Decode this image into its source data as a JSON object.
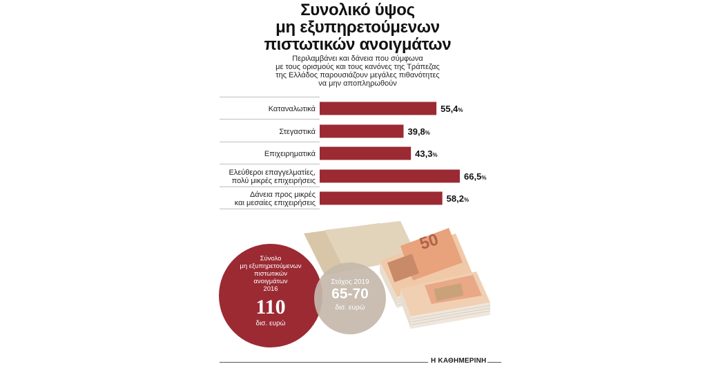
{
  "header": {
    "title_lines": [
      "Συνολικό ύψος",
      "μη εξυπηρετούμενων",
      "πιστωτικών ανοιγμάτων"
    ],
    "subtitle_lines": [
      "Περιλαμβάνει και δάνεια που σύμφωνα",
      "με τους ορισμούς και τους κανόνες της Τράπεζας",
      "της Ελλάδος παρουσιάζουν μεγάλες πιθανότητες",
      "να μην αποπληρωθούν"
    ]
  },
  "chart_data": {
    "type": "bar",
    "orientation": "horizontal",
    "categories": [
      [
        "Καταναλωτικά"
      ],
      [
        "Στεγαστικά"
      ],
      [
        "Επιχειρηματικά"
      ],
      [
        "Ελεύθεροι επαγγελματίες,",
        "πολύ μικρές επιχειρήσεις"
      ],
      [
        "Δάνεια προς μικρές",
        "και μεσαίες επιχειρήσεις"
      ]
    ],
    "values": [
      55.4,
      39.8,
      43.3,
      66.5,
      58.2
    ],
    "value_labels": [
      "55,4",
      "39,8",
      "43,3",
      "66,5",
      "58,2"
    ],
    "unit": "%",
    "bar_color": "#9b2a33",
    "xlim": [
      0,
      70
    ]
  },
  "circles": {
    "total": {
      "label_lines": [
        "Σύνολο",
        "μη εξυπηρετούμενων",
        "πιστωτικών",
        "ανοιγμάτων",
        "2016"
      ],
      "value": "110",
      "unit": "δισ. ευρώ",
      "color": "#9b2a33"
    },
    "target": {
      "label": "Στόχος 2019",
      "value": "65-70",
      "unit": "δισ. ευρώ",
      "color": "#c4b8aa"
    }
  },
  "footer": {
    "credit": "Η ΚΑΘΗΜΕΡΙΝΗ"
  }
}
